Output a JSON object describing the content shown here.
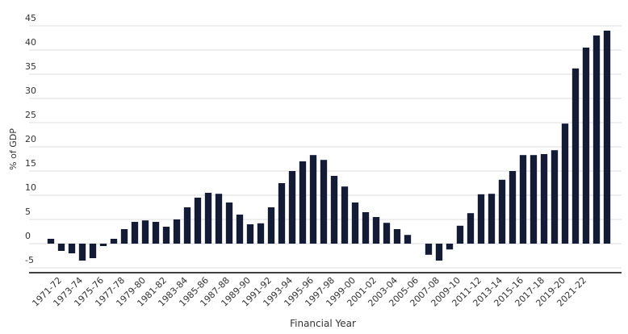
{
  "chart_data": {
    "type": "bar",
    "y_label": "% of GDP",
    "x_label": "Financial Year",
    "categories": [
      "1971-72",
      null,
      "1973-74",
      null,
      "1975-76",
      null,
      "1977-78",
      null,
      "1979-80",
      null,
      "1981-82",
      null,
      "1983-84",
      null,
      "1985-86",
      null,
      "1987-88",
      null,
      "1989-90",
      null,
      "1991-92",
      null,
      "1993-94",
      null,
      "1995-96",
      null,
      "1997-98",
      null,
      "1999-00",
      null,
      "2001-02",
      null,
      "2003-04",
      null,
      "2005-06",
      null,
      "2007-08",
      null,
      "2009-10",
      null,
      "2011-12",
      null,
      "2013-14",
      null,
      "2015-16",
      null,
      "2017-18",
      null,
      "2019-20",
      null,
      "2021-22",
      null,
      null,
      null
    ],
    "values": [
      1,
      -1.5,
      -2,
      -3.5,
      -3,
      -0.5,
      1,
      3,
      4.5,
      4.8,
      4.5,
      3.5,
      5,
      7.5,
      9.5,
      10.5,
      10.3,
      8.5,
      6,
      4,
      4.2,
      7.5,
      12.5,
      15,
      17,
      18.3,
      17.3,
      14,
      11.8,
      8.5,
      6.5,
      5.5,
      4.3,
      3,
      1.8,
      0,
      -2.3,
      -3.5,
      -1.2,
      3.7,
      6.3,
      10.2,
      10.3,
      13.2,
      15,
      18.3,
      18.3,
      18.5,
      19.3,
      24.8,
      36.2,
      40.5,
      43,
      44
    ],
    "color": "#131b35",
    "ylim": [
      -6,
      45
    ],
    "yticks": [
      -5,
      0,
      5,
      10,
      15,
      20,
      25,
      30,
      35,
      40,
      45
    ],
    "grid": true
  }
}
